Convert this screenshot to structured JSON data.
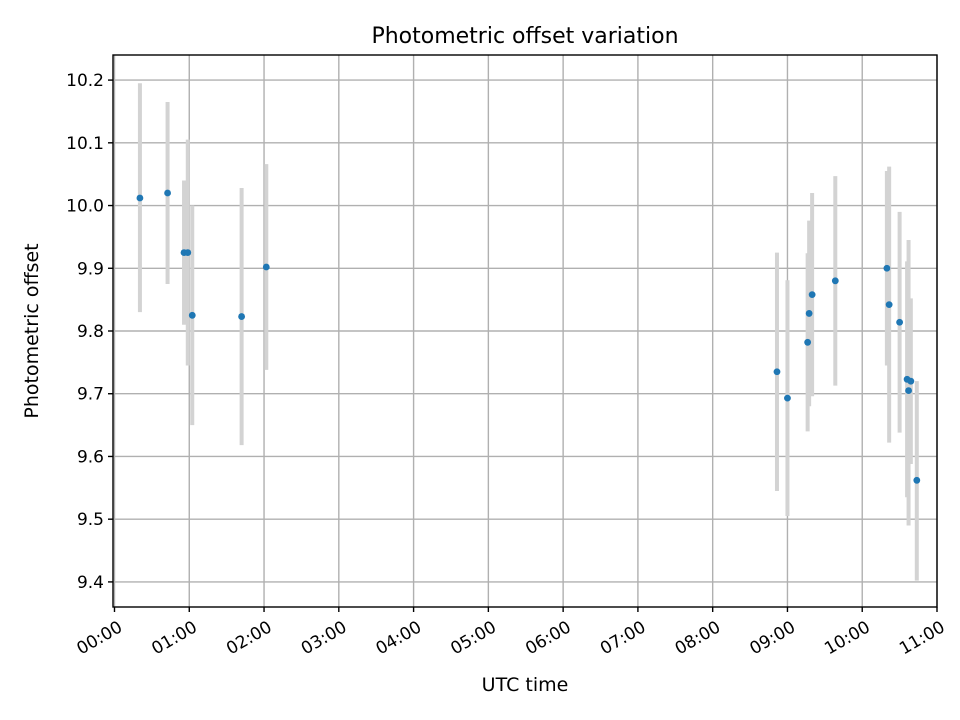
{
  "chart_data": {
    "type": "scatter",
    "title": "Photometric offset variation",
    "xlabel": "UTC time",
    "ylabel": "Photometric offset",
    "x_unit": "hours UTC",
    "xlim": [
      -0.02,
      11.0
    ],
    "ylim": [
      9.36,
      10.24
    ],
    "grid": true,
    "x_ticks": [
      {
        "value": 0,
        "label": "00:00"
      },
      {
        "value": 1,
        "label": "01:00"
      },
      {
        "value": 2,
        "label": "02:00"
      },
      {
        "value": 3,
        "label": "03:00"
      },
      {
        "value": 4,
        "label": "04:00"
      },
      {
        "value": 5,
        "label": "05:00"
      },
      {
        "value": 6,
        "label": "06:00"
      },
      {
        "value": 7,
        "label": "07:00"
      },
      {
        "value": 8,
        "label": "08:00"
      },
      {
        "value": 9,
        "label": "09:00"
      },
      {
        "value": 10,
        "label": "10:00"
      },
      {
        "value": 11,
        "label": "11:00"
      }
    ],
    "y_ticks": [
      {
        "value": 9.4,
        "label": "9.4"
      },
      {
        "value": 9.5,
        "label": "9.5"
      },
      {
        "value": 9.6,
        "label": "9.6"
      },
      {
        "value": 9.7,
        "label": "9.7"
      },
      {
        "value": 9.8,
        "label": "9.8"
      },
      {
        "value": 9.9,
        "label": "9.9"
      },
      {
        "value": 10.0,
        "label": "10.0"
      },
      {
        "value": 10.1,
        "label": "10.1"
      },
      {
        "value": 10.2,
        "label": "10.2"
      }
    ],
    "marker_color": "#1f77b4",
    "errorbar_color": "#d3d3d3",
    "points": [
      {
        "x": 0.34,
        "y": 10.012,
        "err_low": 9.83,
        "err_high": 10.195
      },
      {
        "x": 0.71,
        "y": 10.02,
        "err_low": 9.875,
        "err_high": 10.165
      },
      {
        "x": 0.93,
        "y": 9.925,
        "err_low": 9.81,
        "err_high": 10.04
      },
      {
        "x": 0.98,
        "y": 9.925,
        "err_low": 9.745,
        "err_high": 10.105
      },
      {
        "x": 1.04,
        "y": 9.825,
        "err_low": 9.65,
        "err_high": 10.0
      },
      {
        "x": 1.7,
        "y": 9.823,
        "err_low": 9.618,
        "err_high": 10.028
      },
      {
        "x": 2.03,
        "y": 9.902,
        "err_low": 9.738,
        "err_high": 10.066
      },
      {
        "x": 8.86,
        "y": 9.735,
        "err_low": 9.545,
        "err_high": 9.925
      },
      {
        "x": 9.0,
        "y": 9.693,
        "err_low": 9.505,
        "err_high": 9.881
      },
      {
        "x": 9.27,
        "y": 9.782,
        "err_low": 9.64,
        "err_high": 9.924
      },
      {
        "x": 9.29,
        "y": 9.828,
        "err_low": 9.68,
        "err_high": 9.976
      },
      {
        "x": 9.33,
        "y": 9.858,
        "err_low": 9.696,
        "err_high": 10.02
      },
      {
        "x": 9.64,
        "y": 9.88,
        "err_low": 9.713,
        "err_high": 10.047
      },
      {
        "x": 10.33,
        "y": 9.9,
        "err_low": 9.745,
        "err_high": 10.055
      },
      {
        "x": 10.36,
        "y": 9.842,
        "err_low": 9.622,
        "err_high": 10.062
      },
      {
        "x": 10.5,
        "y": 9.814,
        "err_low": 9.638,
        "err_high": 9.99
      },
      {
        "x": 10.6,
        "y": 9.723,
        "err_low": 9.535,
        "err_high": 9.911
      },
      {
        "x": 10.62,
        "y": 9.705,
        "err_low": 9.49,
        "err_high": 9.945
      },
      {
        "x": 10.65,
        "y": 9.72,
        "err_low": 9.588,
        "err_high": 9.852
      },
      {
        "x": 10.73,
        "y": 9.562,
        "err_low": 9.402,
        "err_high": 9.72
      }
    ]
  }
}
